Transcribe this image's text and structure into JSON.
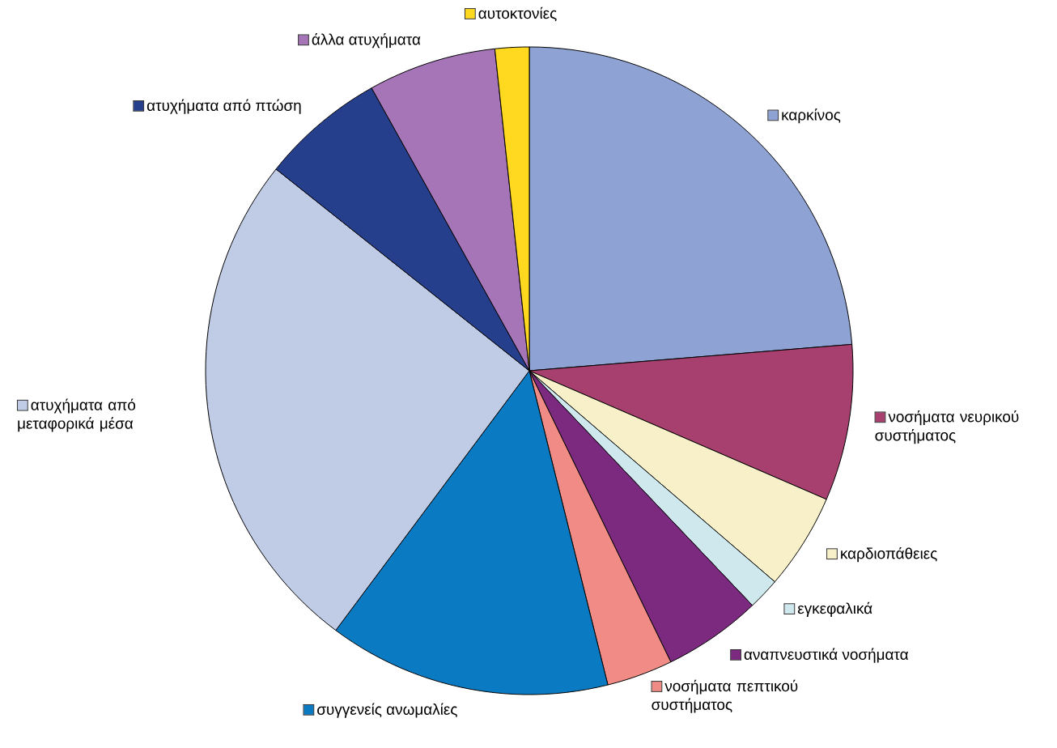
{
  "chart_data": {
    "type": "pie",
    "legend": "right",
    "categories": [
      "καρκίνος",
      "νοσήματα νευρικού συστήματος",
      "καρδιοπάθειες",
      "εγκεφαλικά",
      "αναπνευστικά νοσήματα",
      "νοσήματα πεπτικού συστήματος",
      "συγγενείς ανωμαλίες",
      "ατυχήματα από μεταφορικά μέσα",
      "ατυχήματα από πτώση",
      "άλλα ατυχήματα",
      "αυτοκτονίες"
    ],
    "values": [
      23.7,
      7.8,
      4.8,
      1.6,
      4.9,
      3.3,
      14.1,
      25.5,
      6.2,
      6.4,
      1.7
    ],
    "colors": [
      "#8ea3d4",
      "#a8406f",
      "#f7f0c8",
      "#cfe8ee",
      "#7b2a80",
      "#f08c85",
      "#0a7ac2",
      "#c0cbe6",
      "#263f8c",
      "#a575b8",
      "#ffd820"
    ]
  }
}
